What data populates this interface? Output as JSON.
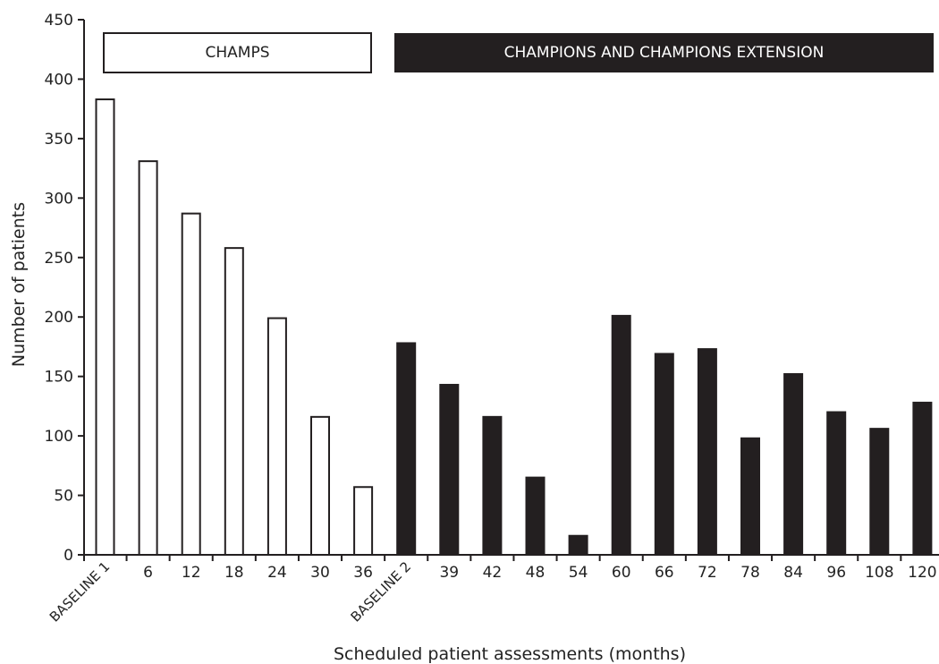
{
  "chart_data": {
    "type": "bar",
    "title": "",
    "xlabel": "Scheduled patient assessments (months)",
    "ylabel": "Number of patients",
    "ylim": [
      0,
      450
    ],
    "yticks": [
      0,
      50,
      100,
      150,
      200,
      250,
      300,
      350,
      400,
      450
    ],
    "grid": false,
    "categories": [
      "BASELINE 1",
      "6",
      "12",
      "18",
      "24",
      "30",
      "36",
      "BASELINE 2",
      "39",
      "42",
      "48",
      "54",
      "60",
      "66",
      "72",
      "78",
      "84",
      "96",
      "108",
      "120"
    ],
    "series": [
      {
        "name": "CHAMPS",
        "color": "#ffffff",
        "values": [
          383,
          331,
          287,
          258,
          199,
          116,
          57,
          null,
          null,
          null,
          null,
          null,
          null,
          null,
          null,
          null,
          null,
          null,
          null,
          null
        ]
      },
      {
        "name": "CHAMPIONS AND CHAMPIONS EXTENSION",
        "color": "#231f20",
        "values": [
          null,
          null,
          null,
          null,
          null,
          null,
          null,
          178,
          143,
          116,
          65,
          16,
          201,
          169,
          173,
          98,
          152,
          120,
          106,
          128
        ]
      }
    ]
  },
  "bands": {
    "champs_label": "CHAMPS",
    "champions_label": "CHAMPIONS AND CHAMPIONS EXTENSION"
  },
  "colors": {
    "open_bar": "#ffffff",
    "filled_bar": "#231f20",
    "axis": "#231f20"
  }
}
